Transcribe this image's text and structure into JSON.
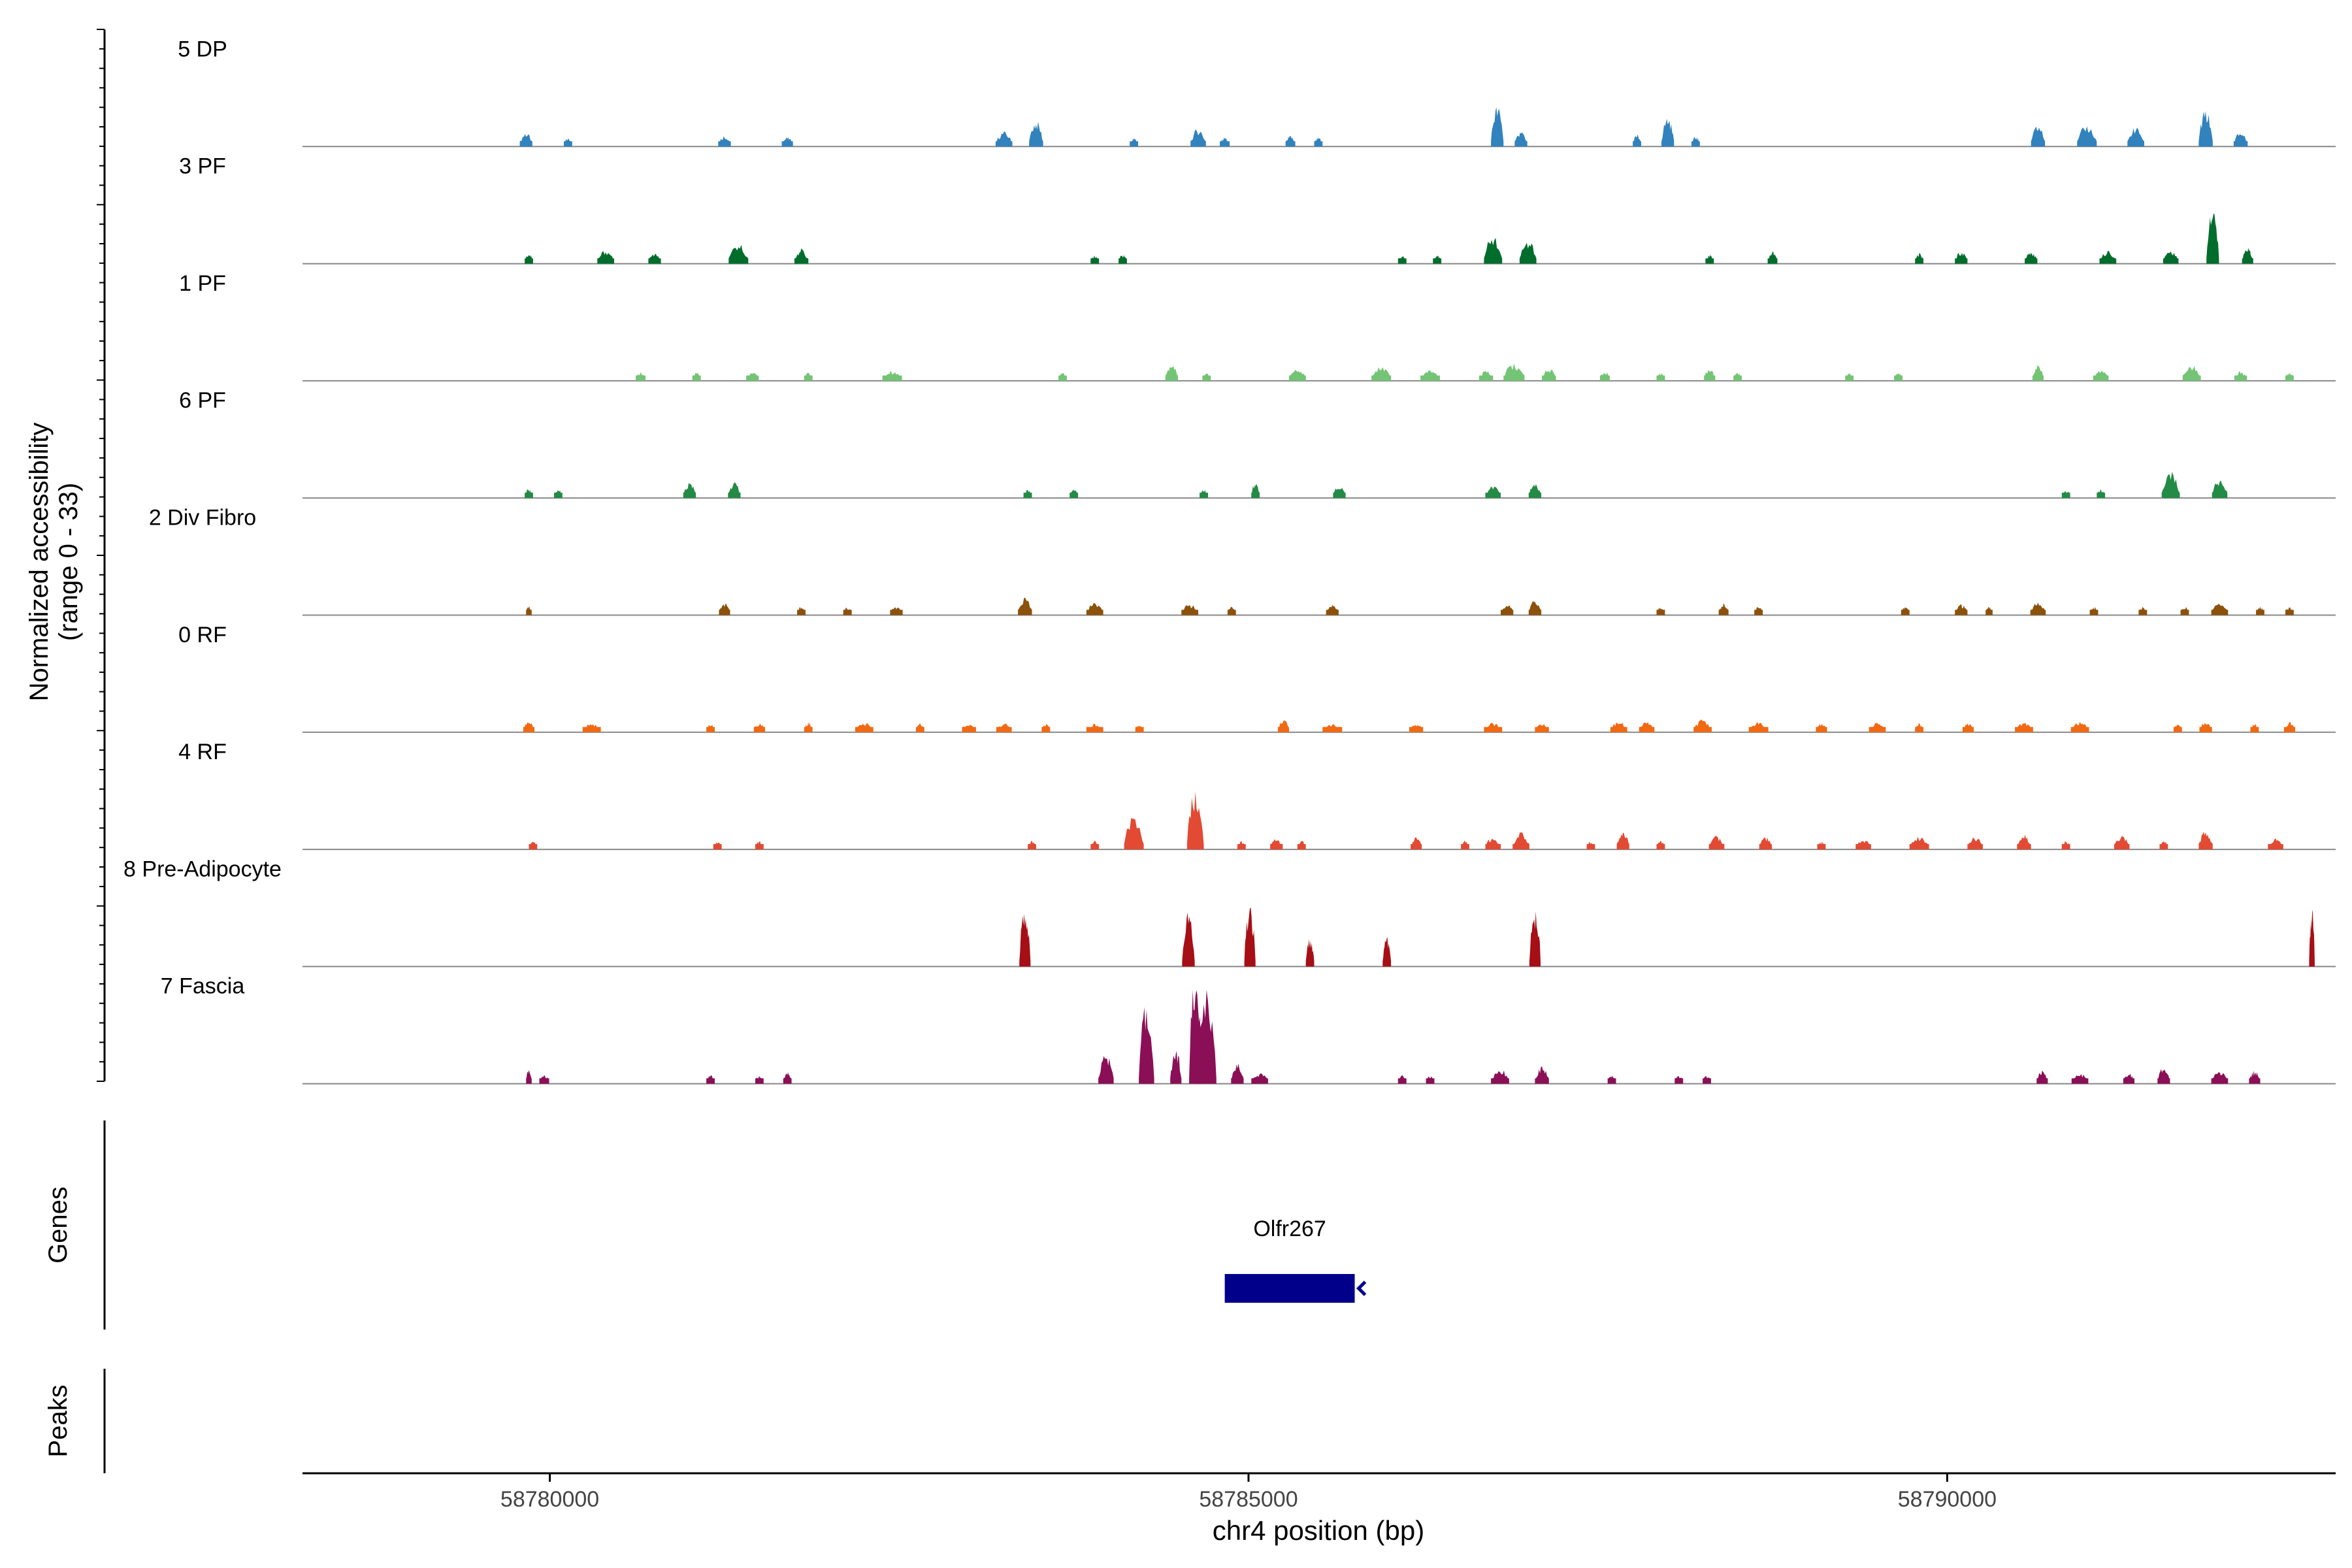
{
  "chart_data": {
    "type": "area",
    "chromosome": "chr4",
    "x_range": [
      58778230,
      58792780
    ],
    "xlabel": "chr4 position (bp)",
    "x_ticks": [
      {
        "value": 58780000,
        "label": "58780000"
      },
      {
        "value": 58785000,
        "label": "58785000"
      },
      {
        "value": 58790000,
        "label": "58790000"
      }
    ],
    "ylabel_line1": "Normalized accessibility",
    "ylabel_line2": "(range 0 - 33)",
    "y_range": [
      0,
      33
    ],
    "grid": false,
    "tracks": [
      {
        "name": "5 DP",
        "color": "#3182bd",
        "peaks": [
          [
            58779830,
            90,
            3.3
          ],
          [
            58780130,
            60,
            2.0
          ],
          [
            58781250,
            90,
            2.6
          ],
          [
            58781700,
            80,
            2.2
          ],
          [
            58783250,
            120,
            3.5
          ],
          [
            58783480,
            100,
            6.0
          ],
          [
            58784180,
            60,
            2.0
          ],
          [
            58784640,
            110,
            4.2
          ],
          [
            58784830,
            70,
            2.2
          ],
          [
            58785300,
            70,
            2.5
          ],
          [
            58785500,
            60,
            2.2
          ],
          [
            58786780,
            90,
            9.5
          ],
          [
            58786950,
            90,
            3.6
          ],
          [
            58787780,
            60,
            2.8
          ],
          [
            58788000,
            90,
            7.0
          ],
          [
            58788200,
            60,
            2.4
          ],
          [
            58790650,
            100,
            5.0
          ],
          [
            58791000,
            140,
            5.0
          ],
          [
            58791350,
            120,
            4.5
          ],
          [
            58791850,
            100,
            8.5
          ],
          [
            58792100,
            100,
            3.5
          ]
        ]
      },
      {
        "name": "3 PF",
        "color": "#006d2c",
        "peaks": [
          [
            58779850,
            60,
            2.5
          ],
          [
            58780400,
            120,
            3.2
          ],
          [
            58780750,
            90,
            2.4
          ],
          [
            58781350,
            140,
            4.6
          ],
          [
            58781800,
            100,
            3.5
          ],
          [
            58783900,
            60,
            2.0
          ],
          [
            58784100,
            60,
            2.2
          ],
          [
            58786100,
            60,
            2.0
          ],
          [
            58786350,
            60,
            2.0
          ],
          [
            58786750,
            130,
            6.5
          ],
          [
            58787000,
            120,
            5.5
          ],
          [
            58788300,
            60,
            2.0
          ],
          [
            58788750,
            70,
            2.8
          ],
          [
            58789800,
            60,
            2.6
          ],
          [
            58790100,
            90,
            3.0
          ],
          [
            58790600,
            90,
            2.8
          ],
          [
            58791150,
            120,
            3.0
          ],
          [
            58791600,
            110,
            3.2
          ],
          [
            58791900,
            90,
            12.5
          ],
          [
            58792150,
            80,
            3.6
          ]
        ]
      },
      {
        "name": "1 PF",
        "color": "#74c476",
        "peaks": [
          [
            58780650,
            70,
            2.0
          ],
          [
            58781050,
            60,
            2.0
          ],
          [
            58781450,
            90,
            2.3
          ],
          [
            58781850,
            60,
            2.0
          ],
          [
            58782450,
            140,
            2.4
          ],
          [
            58783670,
            60,
            2.0
          ],
          [
            58784450,
            90,
            3.8
          ],
          [
            58784700,
            60,
            2.0
          ],
          [
            58785350,
            120,
            2.8
          ],
          [
            58785950,
            140,
            3.4
          ],
          [
            58786300,
            140,
            2.6
          ],
          [
            58786700,
            100,
            2.4
          ],
          [
            58786900,
            150,
            4.0
          ],
          [
            58787150,
            100,
            3.0
          ],
          [
            58787550,
            70,
            2.3
          ],
          [
            58787950,
            60,
            2.0
          ],
          [
            58788300,
            80,
            2.8
          ],
          [
            58788500,
            60,
            2.0
          ],
          [
            58789300,
            60,
            2.0
          ],
          [
            58789650,
            60,
            2.0
          ],
          [
            58790650,
            80,
            3.8
          ],
          [
            58791100,
            110,
            2.6
          ],
          [
            58791750,
            130,
            3.6
          ],
          [
            58792100,
            90,
            2.2
          ],
          [
            58792450,
            60,
            2.0
          ]
        ]
      },
      {
        "name": "6 PF",
        "color": "#238b45",
        "peaks": [
          [
            58779850,
            60,
            2.2
          ],
          [
            58780060,
            60,
            2.0
          ],
          [
            58781000,
            90,
            3.6
          ],
          [
            58781320,
            90,
            3.6
          ],
          [
            58783420,
            60,
            2.0
          ],
          [
            58783750,
            60,
            2.0
          ],
          [
            58784680,
            60,
            2.0
          ],
          [
            58785050,
            60,
            3.8
          ],
          [
            58785650,
            90,
            3.0
          ],
          [
            58786750,
            110,
            2.8
          ],
          [
            58787050,
            90,
            3.5
          ],
          [
            58790850,
            60,
            2.0
          ],
          [
            58791100,
            60,
            2.0
          ],
          [
            58791600,
            130,
            6.0
          ],
          [
            58791950,
            110,
            4.5
          ]
        ]
      },
      {
        "name": "2 Div Fibro",
        "color": "#8c510a",
        "peaks": [
          [
            58779850,
            40,
            2.2
          ],
          [
            58781250,
            80,
            3.0
          ],
          [
            58781800,
            60,
            2.0
          ],
          [
            58782130,
            60,
            2.0
          ],
          [
            58782480,
            90,
            2.0
          ],
          [
            58783400,
            100,
            4.0
          ],
          [
            58783900,
            120,
            3.0
          ],
          [
            58784580,
            120,
            2.6
          ],
          [
            58784880,
            60,
            2.0
          ],
          [
            58785600,
            90,
            2.4
          ],
          [
            58786850,
            90,
            2.8
          ],
          [
            58787050,
            90,
            3.6
          ],
          [
            58787950,
            60,
            2.0
          ],
          [
            58788400,
            70,
            2.8
          ],
          [
            58788650,
            60,
            2.0
          ],
          [
            58789700,
            60,
            2.0
          ],
          [
            58790100,
            90,
            2.6
          ],
          [
            58790300,
            50,
            2.0
          ],
          [
            58790650,
            110,
            3.0
          ],
          [
            58791050,
            60,
            2.0
          ],
          [
            58791400,
            60,
            2.0
          ],
          [
            58791700,
            60,
            2.0
          ],
          [
            58791950,
            120,
            2.8
          ],
          [
            58792240,
            60,
            2.0
          ],
          [
            58792450,
            60,
            2.0
          ]
        ]
      },
      {
        "name": "0 RF",
        "color": "#f16913",
        "peaks": [
          [
            58779850,
            80,
            2.6
          ],
          [
            58780300,
            130,
            2.2
          ],
          [
            58781150,
            60,
            2.0
          ],
          [
            58781500,
            80,
            2.2
          ],
          [
            58781850,
            60,
            2.4
          ],
          [
            58782250,
            130,
            2.3
          ],
          [
            58782650,
            60,
            2.0
          ],
          [
            58783000,
            100,
            2.2
          ],
          [
            58783250,
            110,
            2.2
          ],
          [
            58783550,
            60,
            2.0
          ],
          [
            58783900,
            120,
            2.0
          ],
          [
            58784220,
            60,
            2.0
          ],
          [
            58785250,
            80,
            3.0
          ],
          [
            58785600,
            140,
            2.0
          ],
          [
            58786200,
            100,
            2.0
          ],
          [
            58786750,
            130,
            2.2
          ],
          [
            58787100,
            100,
            2.0
          ],
          [
            58787650,
            120,
            2.6
          ],
          [
            58787850,
            110,
            2.4
          ],
          [
            58788250,
            130,
            3.0
          ],
          [
            58788650,
            140,
            2.4
          ],
          [
            58789100,
            80,
            2.0
          ],
          [
            58789500,
            120,
            2.2
          ],
          [
            58789800,
            60,
            2.0
          ],
          [
            58790150,
            80,
            2.2
          ],
          [
            58790550,
            130,
            2.2
          ],
          [
            58790950,
            130,
            2.6
          ],
          [
            58791650,
            60,
            2.0
          ],
          [
            58791850,
            90,
            2.6
          ],
          [
            58792200,
            60,
            2.0
          ],
          [
            58792450,
            80,
            2.4
          ]
        ]
      },
      {
        "name": "4 RF",
        "color": "#e34a33",
        "peaks": [
          [
            58779880,
            60,
            2.0
          ],
          [
            58781200,
            60,
            2.0
          ],
          [
            58781500,
            60,
            2.0
          ],
          [
            58783450,
            60,
            2.0
          ],
          [
            58783900,
            60,
            2.0
          ],
          [
            58784180,
            140,
            8.0
          ],
          [
            58784620,
            120,
            14.0
          ],
          [
            58784950,
            60,
            2.0
          ],
          [
            58785200,
            90,
            2.6
          ],
          [
            58785380,
            60,
            2.0
          ],
          [
            58786200,
            80,
            3.0
          ],
          [
            58786550,
            60,
            2.0
          ],
          [
            58786750,
            110,
            3.0
          ],
          [
            58786950,
            120,
            4.0
          ],
          [
            58787450,
            60,
            2.0
          ],
          [
            58787680,
            90,
            4.5
          ],
          [
            58787950,
            60,
            2.0
          ],
          [
            58788350,
            110,
            3.2
          ],
          [
            58788700,
            90,
            3.0
          ],
          [
            58789100,
            60,
            2.0
          ],
          [
            58789400,
            110,
            2.4
          ],
          [
            58789800,
            140,
            3.0
          ],
          [
            58790200,
            110,
            3.0
          ],
          [
            58790550,
            100,
            3.6
          ],
          [
            58790850,
            60,
            2.0
          ],
          [
            58791250,
            110,
            3.4
          ],
          [
            58791550,
            60,
            2.0
          ],
          [
            58791850,
            100,
            4.5
          ],
          [
            58792350,
            110,
            2.6
          ]
        ]
      },
      {
        "name": "8 Pre-Adipocyte",
        "color": "#a50f15",
        "peaks": [
          [
            58783400,
            80,
            14.0
          ],
          [
            58784570,
            90,
            13.0
          ],
          [
            58785010,
            80,
            14.5
          ],
          [
            58785440,
            60,
            7.0
          ],
          [
            58785990,
            60,
            7.0
          ],
          [
            58787050,
            80,
            14.0
          ],
          [
            58792610,
            40,
            14.0
          ]
        ]
      },
      {
        "name": "7 Fascia",
        "color": "#8b0f56",
        "peaks": [
          [
            58779850,
            40,
            3.5
          ],
          [
            58779960,
            70,
            2.0
          ],
          [
            58781150,
            60,
            2.0
          ],
          [
            58781500,
            60,
            2.0
          ],
          [
            58781700,
            60,
            3.0
          ],
          [
            58783980,
            110,
            7.0
          ],
          [
            58784270,
            110,
            20.0
          ],
          [
            58784620,
            90,
            27.0
          ],
          [
            58784700,
            140,
            22.0
          ],
          [
            58784480,
            80,
            8.0
          ],
          [
            58784920,
            90,
            5.0
          ],
          [
            58785080,
            120,
            2.5
          ],
          [
            58786100,
            60,
            2.0
          ],
          [
            58786300,
            60,
            2.0
          ],
          [
            58786800,
            130,
            3.5
          ],
          [
            58787100,
            100,
            4.0
          ],
          [
            58787600,
            60,
            2.0
          ],
          [
            58788080,
            60,
            2.0
          ],
          [
            58788280,
            60,
            2.0
          ],
          [
            58790680,
            80,
            3.0
          ],
          [
            58790950,
            120,
            2.5
          ],
          [
            58791300,
            80,
            2.5
          ],
          [
            58791550,
            90,
            4.0
          ],
          [
            58791950,
            120,
            3.0
          ],
          [
            58792200,
            80,
            3.0
          ]
        ]
      }
    ],
    "genes": {
      "label": "Genes",
      "items": [
        {
          "name": "Olfr267",
          "start": 58784830,
          "end": 58785760,
          "strand": "-",
          "color": "#00008b"
        }
      ]
    },
    "peaks_track": {
      "label": "Peaks",
      "items": []
    }
  }
}
